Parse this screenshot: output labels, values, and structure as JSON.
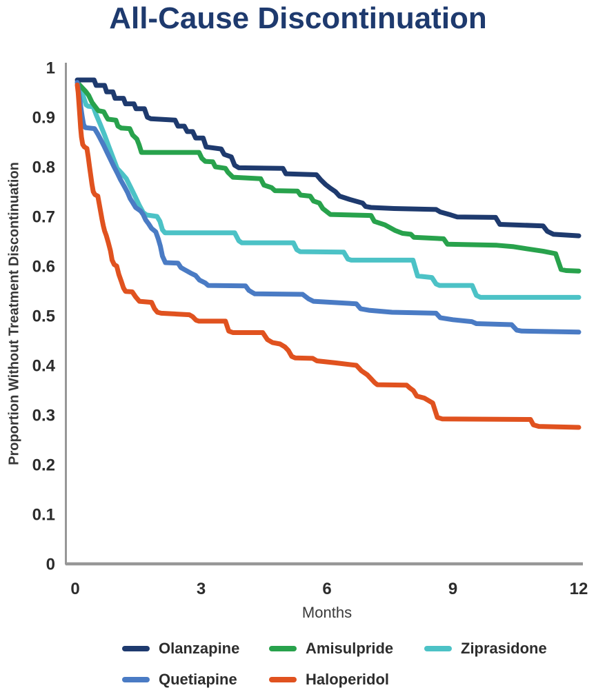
{
  "chart_data": {
    "type": "line",
    "subtype": "kaplan-meier-step-curves",
    "title": "All-Cause Discontinuation",
    "title_color": "#1e3a6e",
    "xlabel": "Months",
    "ylabel": "Proportion Without Treatment Discontinuation",
    "xlim": [
      0,
      12
    ],
    "ylim": [
      0,
      1
    ],
    "x_ticks": [
      "0",
      "3",
      "6",
      "9",
      "12"
    ],
    "y_ticks": [
      "1",
      "0.9",
      "0.8",
      "0.7",
      "0.6",
      "0.5",
      "0.4",
      "0.3",
      "0.2",
      "0.1",
      "0"
    ],
    "grid": false,
    "legend_position": "bottom",
    "series": [
      {
        "name": "Olanzapine",
        "color": "#1e3a6e",
        "points": [
          [
            0.05,
            0.975
          ],
          [
            0.45,
            0.975
          ],
          [
            0.5,
            0.964
          ],
          [
            0.7,
            0.964
          ],
          [
            0.75,
            0.951
          ],
          [
            0.9,
            0.951
          ],
          [
            0.95,
            0.938
          ],
          [
            1.15,
            0.938
          ],
          [
            1.2,
            0.927
          ],
          [
            1.4,
            0.927
          ],
          [
            1.45,
            0.917
          ],
          [
            1.65,
            0.917
          ],
          [
            1.72,
            0.9
          ],
          [
            1.8,
            0.897
          ],
          [
            2.38,
            0.894
          ],
          [
            2.45,
            0.882
          ],
          [
            2.6,
            0.882
          ],
          [
            2.67,
            0.871
          ],
          [
            2.8,
            0.871
          ],
          [
            2.87,
            0.858
          ],
          [
            3.05,
            0.858
          ],
          [
            3.12,
            0.84
          ],
          [
            3.48,
            0.836
          ],
          [
            3.55,
            0.825
          ],
          [
            3.72,
            0.82
          ],
          [
            3.8,
            0.803
          ],
          [
            3.9,
            0.798
          ],
          [
            4.95,
            0.797
          ],
          [
            5.02,
            0.786
          ],
          [
            5.75,
            0.784
          ],
          [
            5.85,
            0.774
          ],
          [
            5.97,
            0.764
          ],
          [
            6.08,
            0.757
          ],
          [
            6.2,
            0.75
          ],
          [
            6.3,
            0.741
          ],
          [
            6.55,
            0.734
          ],
          [
            6.85,
            0.727
          ],
          [
            6.92,
            0.72
          ],
          [
            7.05,
            0.718
          ],
          [
            7.6,
            0.716
          ],
          [
            8.6,
            0.714
          ],
          [
            8.7,
            0.709
          ],
          [
            8.95,
            0.703
          ],
          [
            9.1,
            0.699
          ],
          [
            10.02,
            0.698
          ],
          [
            10.12,
            0.684
          ],
          [
            11.15,
            0.681
          ],
          [
            11.25,
            0.67
          ],
          [
            11.4,
            0.664
          ],
          [
            12,
            0.661
          ]
        ]
      },
      {
        "name": "Amisulpride",
        "color": "#28a24c",
        "points": [
          [
            0.05,
            0.97
          ],
          [
            0.15,
            0.961
          ],
          [
            0.25,
            0.952
          ],
          [
            0.32,
            0.944
          ],
          [
            0.4,
            0.93
          ],
          [
            0.47,
            0.922
          ],
          [
            0.55,
            0.913
          ],
          [
            0.68,
            0.911
          ],
          [
            0.73,
            0.903
          ],
          [
            0.78,
            0.896
          ],
          [
            0.97,
            0.894
          ],
          [
            1.02,
            0.882
          ],
          [
            1.1,
            0.878
          ],
          [
            1.3,
            0.877
          ],
          [
            1.37,
            0.864
          ],
          [
            1.47,
            0.856
          ],
          [
            1.52,
            0.845
          ],
          [
            1.58,
            0.829
          ],
          [
            2.95,
            0.829
          ],
          [
            3.02,
            0.817
          ],
          [
            3.1,
            0.811
          ],
          [
            3.28,
            0.81
          ],
          [
            3.34,
            0.8
          ],
          [
            3.58,
            0.797
          ],
          [
            3.64,
            0.789
          ],
          [
            3.76,
            0.779
          ],
          [
            4.42,
            0.776
          ],
          [
            4.5,
            0.763
          ],
          [
            4.68,
            0.758
          ],
          [
            4.76,
            0.752
          ],
          [
            5.3,
            0.751
          ],
          [
            5.37,
            0.743
          ],
          [
            5.6,
            0.741
          ],
          [
            5.68,
            0.731
          ],
          [
            5.82,
            0.727
          ],
          [
            5.9,
            0.716
          ],
          [
            6.08,
            0.704
          ],
          [
            7.05,
            0.702
          ],
          [
            7.13,
            0.69
          ],
          [
            7.38,
            0.683
          ],
          [
            7.62,
            0.672
          ],
          [
            7.8,
            0.666
          ],
          [
            8.0,
            0.664
          ],
          [
            8.07,
            0.658
          ],
          [
            8.78,
            0.655
          ],
          [
            8.87,
            0.644
          ],
          [
            10.05,
            0.642
          ],
          [
            10.45,
            0.639
          ],
          [
            10.75,
            0.635
          ],
          [
            11.15,
            0.63
          ],
          [
            11.45,
            0.625
          ],
          [
            11.58,
            0.593
          ],
          [
            11.7,
            0.591
          ],
          [
            12,
            0.59
          ]
        ]
      },
      {
        "name": "Ziprasidone",
        "color": "#4cc2c6",
        "points": [
          [
            0.05,
            0.97
          ],
          [
            0.12,
            0.957
          ],
          [
            0.2,
            0.94
          ],
          [
            0.26,
            0.925
          ],
          [
            0.31,
            0.922
          ],
          [
            0.43,
            0.921
          ],
          [
            0.5,
            0.905
          ],
          [
            0.6,
            0.885
          ],
          [
            0.7,
            0.864
          ],
          [
            0.8,
            0.841
          ],
          [
            0.9,
            0.819
          ],
          [
            1.0,
            0.797
          ],
          [
            1.12,
            0.786
          ],
          [
            1.22,
            0.776
          ],
          [
            1.32,
            0.759
          ],
          [
            1.43,
            0.74
          ],
          [
            1.53,
            0.722
          ],
          [
            1.62,
            0.708
          ],
          [
            1.7,
            0.703
          ],
          [
            1.95,
            0.7
          ],
          [
            2.02,
            0.69
          ],
          [
            2.08,
            0.673
          ],
          [
            2.14,
            0.667
          ],
          [
            3.8,
            0.667
          ],
          [
            3.9,
            0.651
          ],
          [
            3.97,
            0.647
          ],
          [
            5.2,
            0.647
          ],
          [
            5.28,
            0.633
          ],
          [
            5.36,
            0.629
          ],
          [
            6.4,
            0.628
          ],
          [
            6.5,
            0.614
          ],
          [
            6.58,
            0.612
          ],
          [
            8.05,
            0.612
          ],
          [
            8.16,
            0.58
          ],
          [
            8.5,
            0.577
          ],
          [
            8.6,
            0.564
          ],
          [
            8.68,
            0.561
          ],
          [
            9.46,
            0.561
          ],
          [
            9.56,
            0.541
          ],
          [
            9.66,
            0.537
          ],
          [
            12,
            0.537
          ]
        ]
      },
      {
        "name": "Quetiapine",
        "color": "#4a7bc4",
        "points": [
          [
            0.05,
            0.97
          ],
          [
            0.08,
            0.954
          ],
          [
            0.11,
            0.936
          ],
          [
            0.14,
            0.917
          ],
          [
            0.17,
            0.9
          ],
          [
            0.2,
            0.885
          ],
          [
            0.24,
            0.879
          ],
          [
            0.46,
            0.877
          ],
          [
            0.54,
            0.866
          ],
          [
            0.62,
            0.853
          ],
          [
            0.68,
            0.843
          ],
          [
            0.76,
            0.829
          ],
          [
            0.84,
            0.815
          ],
          [
            0.92,
            0.801
          ],
          [
            1.0,
            0.788
          ],
          [
            1.08,
            0.774
          ],
          [
            1.18,
            0.759
          ],
          [
            1.25,
            0.748
          ],
          [
            1.31,
            0.736
          ],
          [
            1.37,
            0.728
          ],
          [
            1.44,
            0.718
          ],
          [
            1.56,
            0.711
          ],
          [
            1.62,
            0.704
          ],
          [
            1.68,
            0.693
          ],
          [
            1.75,
            0.685
          ],
          [
            1.82,
            0.676
          ],
          [
            1.92,
            0.669
          ],
          [
            1.98,
            0.655
          ],
          [
            2.03,
            0.64
          ],
          [
            2.08,
            0.62
          ],
          [
            2.15,
            0.607
          ],
          [
            2.45,
            0.606
          ],
          [
            2.52,
            0.597
          ],
          [
            2.6,
            0.593
          ],
          [
            2.75,
            0.586
          ],
          [
            2.87,
            0.581
          ],
          [
            2.96,
            0.572
          ],
          [
            3.1,
            0.566
          ],
          [
            3.17,
            0.561
          ],
          [
            4.06,
            0.56
          ],
          [
            4.14,
            0.551
          ],
          [
            4.22,
            0.547
          ],
          [
            4.28,
            0.544
          ],
          [
            5.42,
            0.543
          ],
          [
            5.56,
            0.534
          ],
          [
            5.68,
            0.529
          ],
          [
            6.7,
            0.524
          ],
          [
            6.8,
            0.514
          ],
          [
            7.0,
            0.511
          ],
          [
            7.55,
            0.507
          ],
          [
            8.6,
            0.505
          ],
          [
            8.7,
            0.496
          ],
          [
            9.0,
            0.492
          ],
          [
            9.45,
            0.488
          ],
          [
            9.56,
            0.484
          ],
          [
            10.4,
            0.482
          ],
          [
            10.52,
            0.471
          ],
          [
            10.64,
            0.469
          ],
          [
            12,
            0.467
          ]
        ]
      },
      {
        "name": "Haloperidol",
        "color": "#e0521f",
        "points": [
          [
            0.05,
            0.965
          ],
          [
            0.07,
            0.95
          ],
          [
            0.09,
            0.927
          ],
          [
            0.11,
            0.903
          ],
          [
            0.13,
            0.878
          ],
          [
            0.15,
            0.86
          ],
          [
            0.18,
            0.845
          ],
          [
            0.22,
            0.84
          ],
          [
            0.28,
            0.837
          ],
          [
            0.31,
            0.82
          ],
          [
            0.34,
            0.801
          ],
          [
            0.37,
            0.783
          ],
          [
            0.4,
            0.765
          ],
          [
            0.43,
            0.75
          ],
          [
            0.47,
            0.744
          ],
          [
            0.54,
            0.741
          ],
          [
            0.58,
            0.722
          ],
          [
            0.61,
            0.708
          ],
          [
            0.64,
            0.694
          ],
          [
            0.67,
            0.681
          ],
          [
            0.7,
            0.671
          ],
          [
            0.74,
            0.662
          ],
          [
            0.79,
            0.647
          ],
          [
            0.84,
            0.631
          ],
          [
            0.88,
            0.612
          ],
          [
            0.93,
            0.603
          ],
          [
            0.99,
            0.6
          ],
          [
            1.04,
            0.583
          ],
          [
            1.1,
            0.569
          ],
          [
            1.15,
            0.556
          ],
          [
            1.2,
            0.549
          ],
          [
            1.36,
            0.548
          ],
          [
            1.44,
            0.538
          ],
          [
            1.53,
            0.529
          ],
          [
            1.82,
            0.527
          ],
          [
            1.89,
            0.514
          ],
          [
            1.96,
            0.507
          ],
          [
            2.05,
            0.505
          ],
          [
            2.72,
            0.502
          ],
          [
            2.8,
            0.498
          ],
          [
            2.88,
            0.491
          ],
          [
            2.95,
            0.489
          ],
          [
            3.58,
            0.489
          ],
          [
            3.66,
            0.469
          ],
          [
            3.76,
            0.466
          ],
          [
            4.47,
            0.466
          ],
          [
            4.58,
            0.452
          ],
          [
            4.7,
            0.446
          ],
          [
            4.88,
            0.443
          ],
          [
            5.0,
            0.437
          ],
          [
            5.08,
            0.43
          ],
          [
            5.16,
            0.418
          ],
          [
            5.24,
            0.415
          ],
          [
            5.66,
            0.414
          ],
          [
            5.76,
            0.409
          ],
          [
            6.2,
            0.405
          ],
          [
            6.7,
            0.4
          ],
          [
            6.82,
            0.389
          ],
          [
            6.96,
            0.381
          ],
          [
            7.05,
            0.373
          ],
          [
            7.14,
            0.365
          ],
          [
            7.2,
            0.361
          ],
          [
            7.9,
            0.36
          ],
          [
            7.98,
            0.354
          ],
          [
            8.06,
            0.349
          ],
          [
            8.14,
            0.338
          ],
          [
            8.32,
            0.334
          ],
          [
            8.52,
            0.324
          ],
          [
            8.63,
            0.295
          ],
          [
            8.75,
            0.292
          ],
          [
            10.85,
            0.291
          ],
          [
            10.92,
            0.28
          ],
          [
            11.05,
            0.277
          ],
          [
            12,
            0.275
          ]
        ]
      }
    ]
  }
}
